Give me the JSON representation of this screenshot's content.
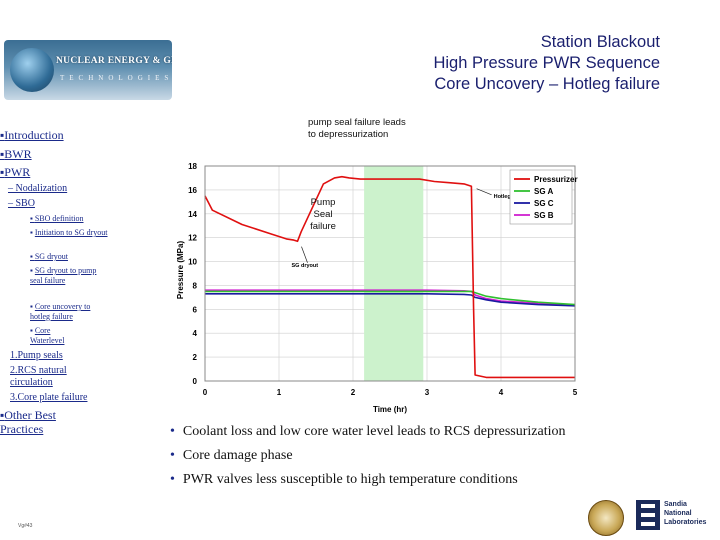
{
  "logo": {
    "title": "NUCLEAR ENERGY & GLOBAL SECURITY",
    "subtitle": "TECHNOLOGIES"
  },
  "heading": [
    "Station Blackout",
    "High Pressure PWR Sequence",
    "Core Uncovery – Hotleg failure"
  ],
  "nav": {
    "top": [
      "Introduction",
      "BWR",
      "PWR"
    ],
    "sub": [
      "– Nodalization",
      "– SBO"
    ],
    "sbo_items": [
      "SBO definition",
      "Initiation to SG dryout",
      "SG dryout",
      "SG dryout to pump seal failure",
      "Core uncovery to hotleg failure",
      "Core Waterlevel"
    ],
    "numbered": [
      "1.Pump seals",
      "2.RCS natural circulation",
      "3.Core plate failure"
    ],
    "other": "Other Best Practices"
  },
  "page_number": "Vg#43",
  "annotations": {
    "top": "pump seal failure leads to depressurization",
    "pump": "Pump Seal failure"
  },
  "bullets": [
    "Coolant loss and low core water level leads to RCS depressurization",
    "Core damage phase",
    "PWR valves less susceptible to high temperature conditions"
  ],
  "footer_logo": [
    "Sandia",
    "National",
    "Laboratories"
  ],
  "chart_data": {
    "type": "line",
    "xlabel": "Time (hr)",
    "ylabel": "Pressure (MPa)",
    "xlim": [
      0,
      5
    ],
    "ylim": [
      0,
      18
    ],
    "xticks": [
      0,
      1,
      2,
      3,
      4,
      5
    ],
    "yticks": [
      0,
      2,
      4,
      6,
      8,
      10,
      12,
      14,
      16,
      18
    ],
    "grid": true,
    "legend_position": "top-right",
    "shaded_region": {
      "x": [
        2.15,
        2.95
      ],
      "color": "#ccf2cc"
    },
    "annotations": [
      {
        "text": "SG dryout",
        "x": 1.25,
        "y": 11.5
      },
      {
        "text": "Hotleg C creep rupture",
        "x": 3.9,
        "y": 15.5
      }
    ],
    "series": [
      {
        "name": "Pressurizer",
        "color": "#e01010",
        "x": [
          0,
          0.1,
          0.5,
          0.9,
          1.1,
          1.2,
          1.25,
          1.3,
          1.45,
          1.6,
          1.75,
          1.85,
          1.95,
          2.1,
          2.3,
          2.5,
          2.7,
          2.9,
          3.1,
          3.3,
          3.5,
          3.6,
          3.63,
          3.65,
          3.8,
          4.0,
          4.5,
          5.0
        ],
        "y": [
          15.5,
          14.3,
          13.1,
          12.3,
          11.9,
          11.8,
          11.7,
          12.5,
          14.5,
          16.5,
          17.0,
          17.1,
          17.0,
          16.9,
          16.9,
          16.9,
          16.9,
          16.9,
          16.7,
          16.6,
          16.5,
          16.3,
          6.0,
          0.5,
          0.3,
          0.3,
          0.3,
          0.3
        ]
      },
      {
        "name": "SG A",
        "color": "#30c030",
        "x": [
          0,
          3.1,
          3.3,
          3.5,
          3.6,
          3.65,
          3.8,
          4.0,
          4.5,
          5.0
        ],
        "y": [
          7.5,
          7.5,
          7.5,
          7.5,
          7.5,
          7.4,
          7.1,
          6.9,
          6.6,
          6.4
        ]
      },
      {
        "name": "SG C",
        "color": "#1a1aa0",
        "x": [
          0,
          0.5,
          1.0,
          1.5,
          2.0,
          2.5,
          3.0,
          3.5,
          3.6,
          3.65,
          3.8,
          4.0,
          4.5,
          5.0
        ],
        "y": [
          7.3,
          7.3,
          7.3,
          7.3,
          7.3,
          7.3,
          7.3,
          7.25,
          7.2,
          7.0,
          6.8,
          6.6,
          6.4,
          6.3
        ]
      },
      {
        "name": "SG B",
        "color": "#d020d0",
        "x": [
          0,
          0.5,
          1.0,
          1.5,
          2.0,
          2.5,
          3.0,
          3.5,
          3.6,
          3.65,
          3.8,
          4.0,
          4.5,
          5.0
        ],
        "y": [
          7.6,
          7.6,
          7.6,
          7.6,
          7.6,
          7.6,
          7.6,
          7.55,
          7.5,
          7.2,
          6.9,
          6.7,
          6.5,
          6.3
        ]
      }
    ]
  }
}
